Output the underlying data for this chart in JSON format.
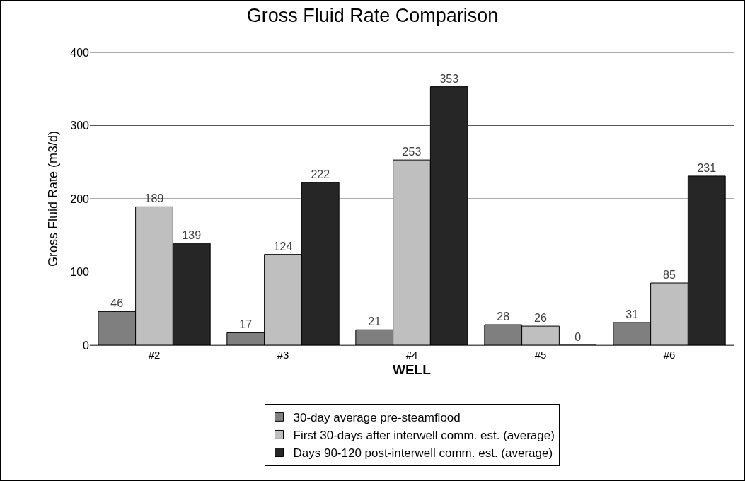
{
  "chart_data": {
    "type": "bar",
    "title": "Gross Fluid Rate Comparison",
    "xlabel": "WELL",
    "ylabel": "Gross Fluid Rate (m3/d)",
    "categories": [
      "#2",
      "#3",
      "#4",
      "#5",
      "#6"
    ],
    "series": [
      {
        "name": "30-day average pre-steamflood",
        "color": "#7f7f7f",
        "values": [
          46,
          17,
          21,
          28,
          31
        ]
      },
      {
        "name": "First 30-days after interwell comm. est. (average)",
        "color": "#bfbfbf",
        "values": [
          189,
          124,
          253,
          26,
          85
        ]
      },
      {
        "name": "Days 90-120 post-interwell comm. est. (average)",
        "color": "#262626",
        "values": [
          139,
          222,
          353,
          0,
          231
        ]
      }
    ],
    "ylim": [
      0,
      400
    ],
    "yticks": [
      0,
      100,
      200,
      300,
      400
    ],
    "grid": "y",
    "legend": "bottom",
    "data_labels": true
  }
}
